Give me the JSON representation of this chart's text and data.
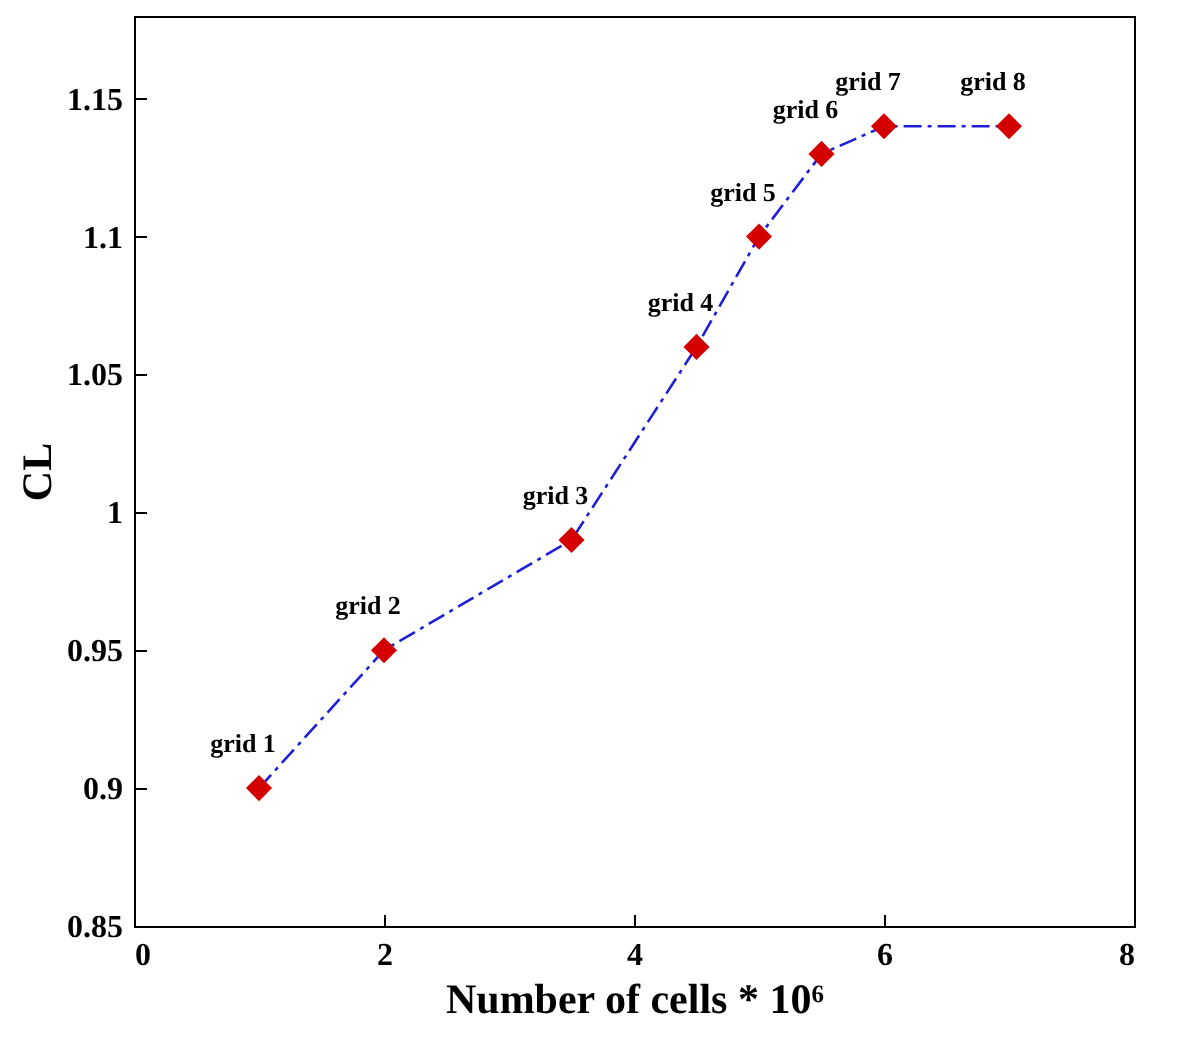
{
  "chart_data": {
    "type": "line",
    "xlabel": "Number of cells * 10⁶",
    "ylabel": "CL",
    "x": [
      1,
      2,
      3.5,
      4.5,
      5,
      5.5,
      6,
      7
    ],
    "series": [
      {
        "color": "#1f1fd6",
        "values": [
          0.9,
          0.95,
          0.99,
          1.06,
          1.1,
          1.13,
          1.14,
          1.14
        ],
        "marker": "none",
        "line_style": "dashed"
      },
      {
        "type": "scatter",
        "color": "#d40000",
        "values": [
          0.9,
          0.95,
          0.99,
          1.06,
          1.1,
          1.13,
          1.14,
          1.14
        ],
        "marker": "diamond"
      }
    ],
    "xlim": [
      0,
      8
    ],
    "xticks": [
      0,
      2,
      4,
      6,
      8
    ],
    "ylim": [
      0.85,
      1.18
    ],
    "yticks": [
      0.85,
      0.9,
      0.95,
      1,
      1.05,
      1.1,
      1.15
    ],
    "annotations": [
      {
        "text": "grid 1",
        "x": 1,
        "y": 0.9
      },
      {
        "text": "grid 2",
        "x": 2,
        "y": 0.95
      },
      {
        "text": "grid 3",
        "x": 3.5,
        "y": 0.99
      },
      {
        "text": "grid 4",
        "x": 4.5,
        "y": 1.06
      },
      {
        "text": "grid 5",
        "x": 5,
        "y": 1.1
      },
      {
        "text": "grid 6",
        "x": 5.5,
        "y": 1.13
      },
      {
        "text": "grid 7",
        "x": 6,
        "y": 1.14
      },
      {
        "text": "grid 8",
        "x": 7,
        "y": 1.14
      }
    ]
  }
}
